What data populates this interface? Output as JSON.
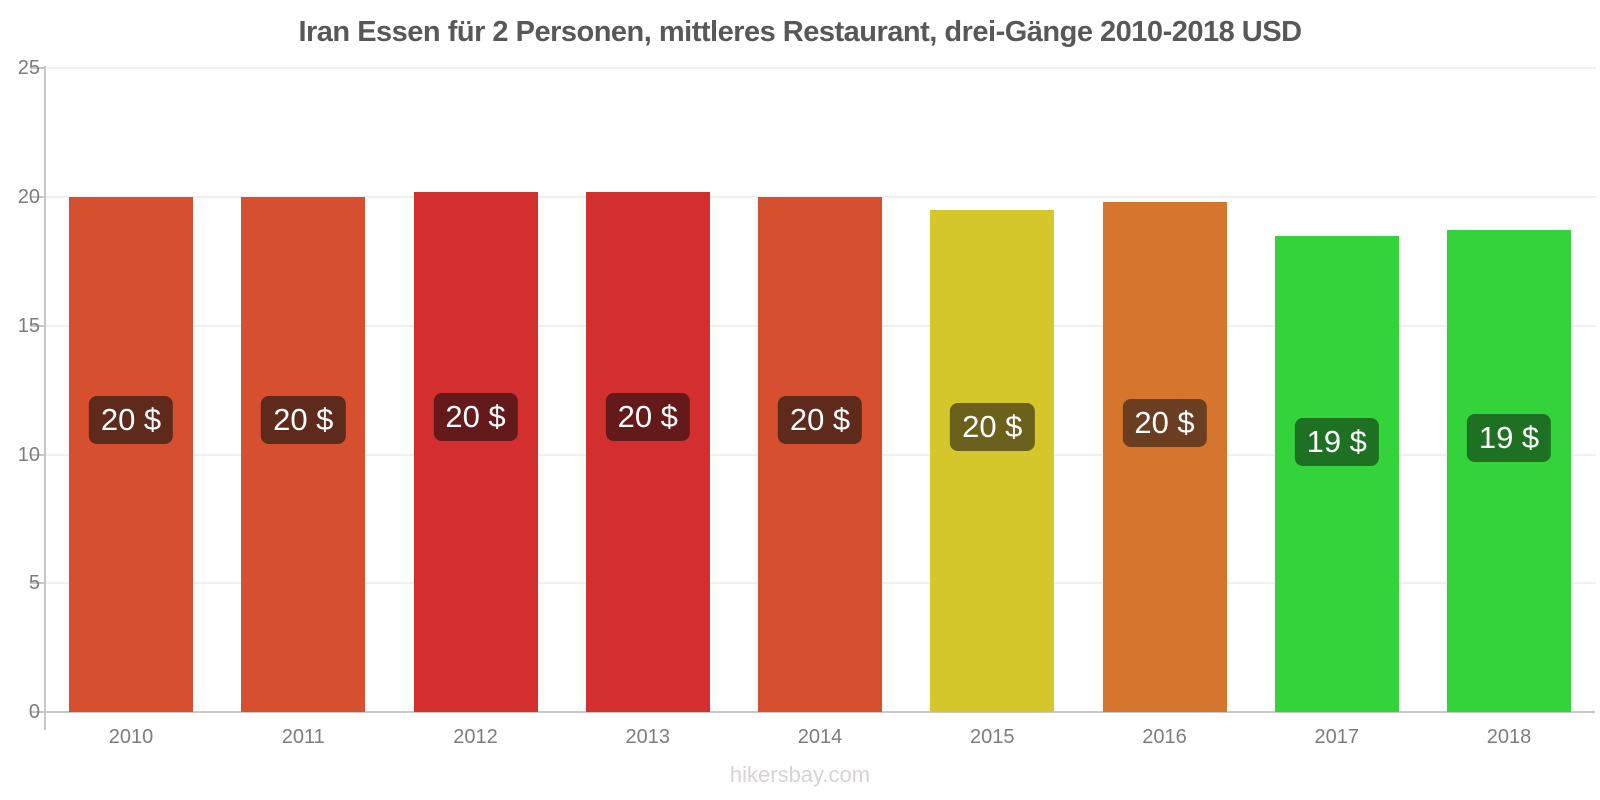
{
  "chart_data": {
    "type": "bar",
    "title": "Iran Essen für 2 Personen, mittleres Restaurant, drei-Gänge 2010-2018 USD",
    "footer": "hikersbay.com",
    "xlabel": "",
    "ylabel": "",
    "ylim": [
      0,
      25
    ],
    "yticks": [
      0,
      5,
      10,
      15,
      20,
      25
    ],
    "grid": true,
    "legend": "none",
    "categories": [
      "2010",
      "2011",
      "2012",
      "2013",
      "2014",
      "2015",
      "2016",
      "2017",
      "2018"
    ],
    "values": [
      20.0,
      20.0,
      20.2,
      20.2,
      20.0,
      19.5,
      19.8,
      18.5,
      18.7
    ],
    "data_labels": [
      "20 $",
      "20 $",
      "20 $",
      "20 $",
      "20 $",
      "20 $",
      "20 $",
      "19 $",
      "19 $"
    ],
    "bar_colors": [
      "#d6502f",
      "#d6502f",
      "#d32f2f",
      "#d32f2f",
      "#d6502f",
      "#d4c72c",
      "#d6762e",
      "#34d33c",
      "#34d33c"
    ],
    "label_box_colors": [
      "#5e2a1b",
      "#5e2a1b",
      "#641a1a",
      "#641a1a",
      "#5e2a1b",
      "#6b601c",
      "#6b3e21",
      "#1e7023",
      "#1e7023"
    ],
    "colors": {
      "title_text": "#58585a",
      "axis_line": "#c9c6c4",
      "gridline": "#f2f0ef",
      "tick_text": "#7d7d7d",
      "value_text": "#ffffff",
      "footer_text": "#d8d3d2",
      "background": "#ffffff"
    }
  }
}
